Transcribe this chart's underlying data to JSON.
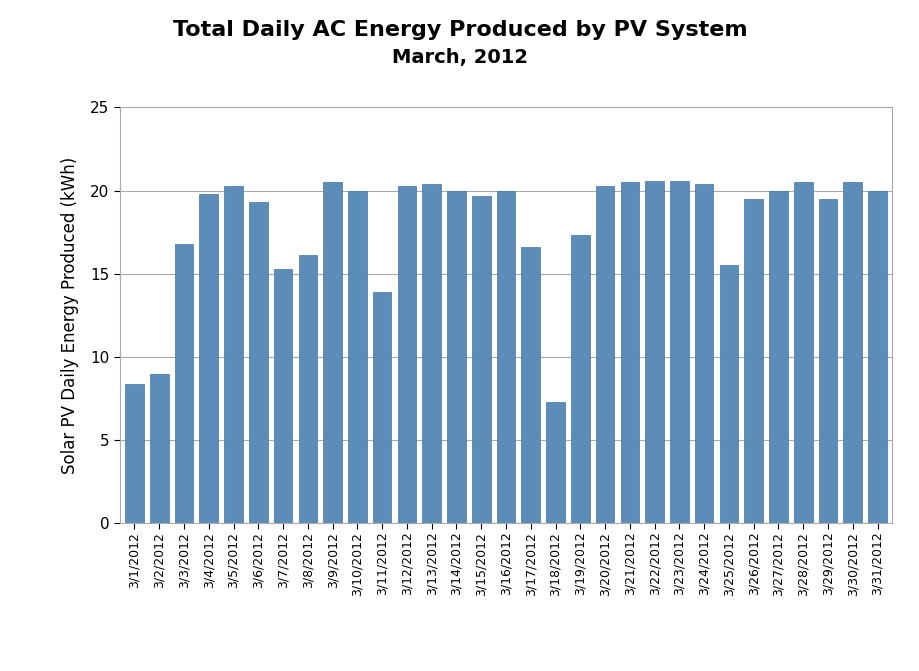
{
  "title_line1": "Total Daily AC Energy Produced by PV System",
  "title_line2": "March, 2012",
  "ylabel": "Solar PV Daily Energy Produced (kWh)",
  "dates": [
    "3/1/2012",
    "3/2/2012",
    "3/3/2012",
    "3/4/2012",
    "3/5/2012",
    "3/6/2012",
    "3/7/2012",
    "3/8/2012",
    "3/9/2012",
    "3/10/2012",
    "3/11/2012",
    "3/12/2012",
    "3/13/2012",
    "3/14/2012",
    "3/15/2012",
    "3/16/2012",
    "3/17/2012",
    "3/18/2012",
    "3/19/2012",
    "3/20/2012",
    "3/21/2012",
    "3/22/2012",
    "3/23/2012",
    "3/24/2012",
    "3/25/2012",
    "3/26/2012",
    "3/27/2012",
    "3/28/2012",
    "3/29/2012",
    "3/30/2012",
    "3/31/2012"
  ],
  "values": [
    8.4,
    9.0,
    16.8,
    19.8,
    20.3,
    19.3,
    15.3,
    16.1,
    20.5,
    20.0,
    13.9,
    20.3,
    20.4,
    20.0,
    19.7,
    20.0,
    16.6,
    7.3,
    17.3,
    20.3,
    20.5,
    20.6,
    20.6,
    20.4,
    15.5,
    19.5,
    20.0,
    20.5,
    19.5,
    20.5,
    20.0
  ],
  "bar_color": "#5B8DB8",
  "bar_edge_color": "#4472A4",
  "ylim": [
    0,
    25
  ],
  "yticks": [
    0,
    5,
    10,
    15,
    20,
    25
  ],
  "grid_color": "#AAAAAA",
  "background_color": "#FFFFFF",
  "plot_area_color": "#FFFFFF",
  "title_fontsize": 16,
  "subtitle_fontsize": 14,
  "ylabel_fontsize": 12,
  "tick_fontsize": 9,
  "border_color": "#AAAAAA"
}
